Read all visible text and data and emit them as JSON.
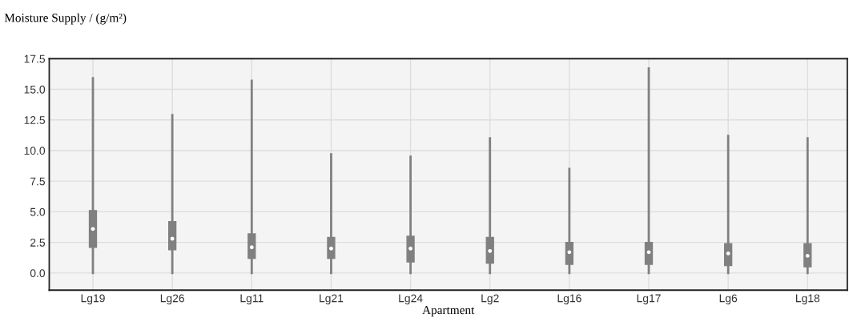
{
  "chart_data": {
    "type": "box",
    "title": "Moisture Supply / (g/m²)",
    "xlabel": "Apartment",
    "categories": [
      "Lg19",
      "Lg26",
      "Lg11",
      "Lg21",
      "Lg24",
      "Lg2",
      "Lg16",
      "Lg17",
      "Lg6",
      "Lg18"
    ],
    "boxes": [
      {
        "low": 0,
        "q1": 2.1,
        "median": 3.6,
        "q3": 5.1,
        "high": 15.9
      },
      {
        "low": 0,
        "q1": 1.9,
        "median": 2.8,
        "q3": 4.2,
        "high": 12.9
      },
      {
        "low": 0,
        "q1": 1.2,
        "median": 2.1,
        "q3": 3.2,
        "high": 15.7
      },
      {
        "low": 0,
        "q1": 1.2,
        "median": 2.0,
        "q3": 2.9,
        "high": 9.7
      },
      {
        "low": 0,
        "q1": 0.9,
        "median": 2.0,
        "q3": 3.0,
        "high": 9.5
      },
      {
        "low": 0,
        "q1": 0.8,
        "median": 1.8,
        "q3": 2.9,
        "high": 11.0
      },
      {
        "low": 0,
        "q1": 0.7,
        "median": 1.7,
        "q3": 2.5,
        "high": 8.5
      },
      {
        "low": 0,
        "q1": 0.7,
        "median": 1.7,
        "q3": 2.5,
        "high": 16.7
      },
      {
        "low": 0,
        "q1": 0.6,
        "median": 1.6,
        "q3": 2.4,
        "high": 11.2
      },
      {
        "low": 0,
        "q1": 0.5,
        "median": 1.4,
        "q3": 2.4,
        "high": 11.0
      }
    ],
    "color": "#808080",
    "ylim": [
      -1.4,
      17.5
    ],
    "yticks": [
      {
        "value": 0,
        "label": "0.0"
      },
      {
        "value": 2.5,
        "label": "2.5"
      },
      {
        "value": 5,
        "label": "5.0"
      },
      {
        "value": 7.5,
        "label": "7.5"
      },
      {
        "value": 10,
        "label": "10.0"
      },
      {
        "value": 12.5,
        "label": "12.5"
      },
      {
        "value": 15,
        "label": "15.0"
      },
      {
        "value": 17.5,
        "label": "17.5"
      }
    ],
    "grid": true
  }
}
